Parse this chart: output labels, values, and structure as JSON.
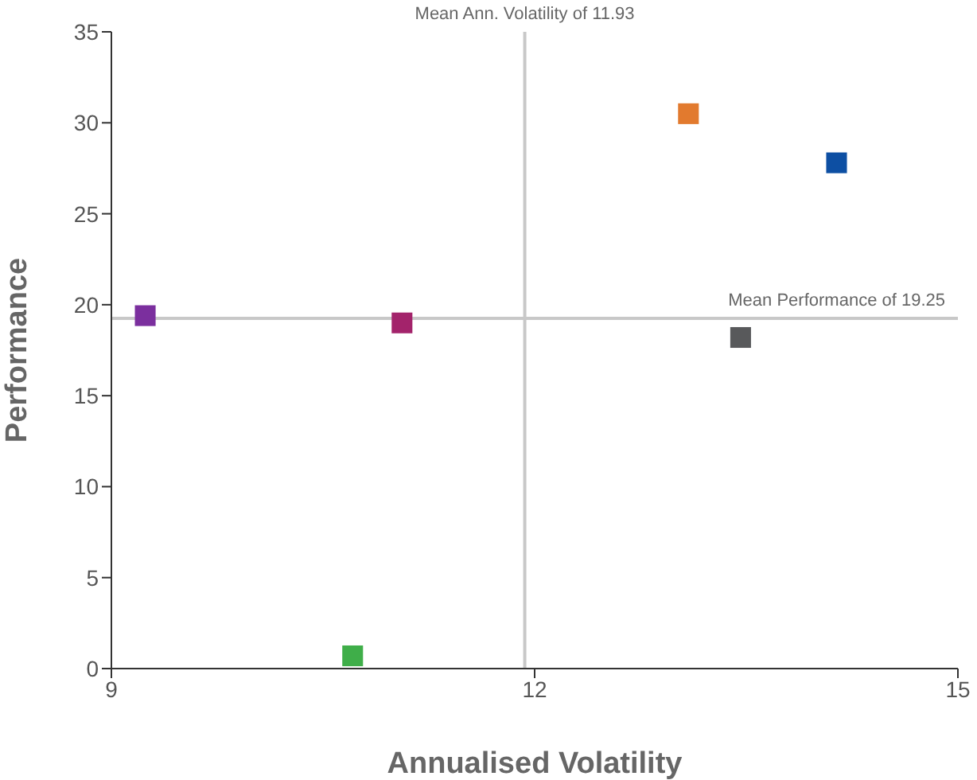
{
  "chart_data": {
    "type": "scatter",
    "xlabel": "Annualised Volatility",
    "ylabel": "Performance",
    "x": [
      9.24,
      11.06,
      10.71,
      13.09,
      14.14,
      13.46
    ],
    "values": [
      19.4,
      19.0,
      0.7,
      30.5,
      27.8,
      18.2
    ],
    "colors": [
      "#7b2f9e",
      "#a3236b",
      "#3fae49",
      "#e27a2e",
      "#0d4fa3",
      "#58595b"
    ],
    "xlim": [
      9,
      15
    ],
    "xticks": [
      9,
      12,
      15
    ],
    "ylim": [
      0,
      35
    ],
    "yticks": [
      0,
      5,
      10,
      15,
      20,
      25,
      30,
      35
    ],
    "grid": false,
    "legend": false,
    "marker": "square",
    "ref_lines": [
      {
        "axis": "x",
        "value": 11.93,
        "label": "Mean Ann. Volatility of 11.93",
        "color": "#c8c8c8"
      },
      {
        "axis": "y",
        "value": 19.25,
        "label": "Mean Performance of 19.25",
        "color": "#c8c8c8"
      }
    ]
  }
}
